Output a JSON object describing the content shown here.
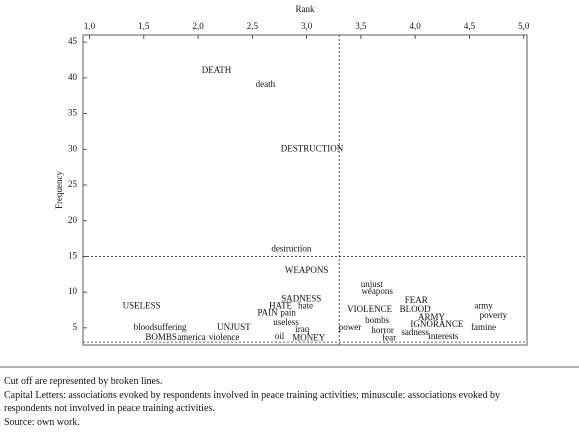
{
  "chart_data": {
    "type": "scatter",
    "xlabel": "Rank",
    "ylabel": "Frequency",
    "xlim": [
      0.94,
      5.03
    ],
    "ylim": [
      2.6,
      46
    ],
    "xticks": [
      {
        "value": 1,
        "label": "1,0"
      },
      {
        "value": 1.5,
        "label": "1,5"
      },
      {
        "value": 2,
        "label": "2,0"
      },
      {
        "value": 2.5,
        "label": "2,5"
      },
      {
        "value": 3,
        "label": "3,0"
      },
      {
        "value": 3.5,
        "label": "3,5"
      },
      {
        "value": 4,
        "label": "4,0"
      },
      {
        "value": 4.5,
        "label": "4,5"
      },
      {
        "value": 5,
        "label": "5,0"
      }
    ],
    "yticks": [
      5,
      10,
      15,
      20,
      25,
      30,
      35,
      40,
      45
    ],
    "cutoff_x": [
      3.3
    ],
    "cutoff_y": [
      15,
      3
    ],
    "labels": [
      "DEATH",
      "death",
      "DESTRUCTION",
      "destruction",
      "WEAPONS",
      "unjust",
      "weapons",
      "USELESS",
      "SADNESS",
      "HATE",
      "hate",
      "VIOLENCE",
      "FEAR",
      "BLOOD",
      "army",
      "PAIN",
      "pain",
      "ARMY",
      "poverty",
      "useless",
      "bombs",
      "IGNORANCE",
      "famine",
      "bloodsuffering",
      "UNJUST",
      "iraq",
      "power",
      "horror",
      "sadness",
      "BOMBS",
      "america",
      "violence",
      "oil",
      "MONEY",
      "fear",
      "interests"
    ],
    "x": [
      2.17,
      2.62,
      3.05,
      2.86,
      3.0,
      3.6,
      3.65,
      1.48,
      2.95,
      2.76,
      2.99,
      3.58,
      4.01,
      4.0,
      4.63,
      2.64,
      2.83,
      4.15,
      4.72,
      2.81,
      3.65,
      4.2,
      4.63,
      1.65,
      2.33,
      2.96,
      3.4,
      3.7,
      4.0,
      1.66,
      1.94,
      2.24,
      2.75,
      3.02,
      3.76,
      4.26
    ],
    "values": [
      41,
      39,
      30,
      16,
      13,
      11,
      10,
      8,
      9,
      8,
      8,
      7.5,
      8.8,
      7.5,
      8,
      7,
      7,
      6.4,
      6.7,
      5.7,
      6,
      5.4,
      5,
      5,
      5,
      4.7,
      5,
      4.6,
      4.3,
      3.6,
      3.6,
      3.6,
      3.7,
      3.5,
      3.5,
      3.7
    ]
  },
  "notes": [
    "Cut off are represented by broken lines.",
    "Capital Letters: associations evoked by respondents involved in peace training activities; minuscule: associations evoked by",
    "respondents not involved in peace training activities.",
    "Source: own work."
  ]
}
